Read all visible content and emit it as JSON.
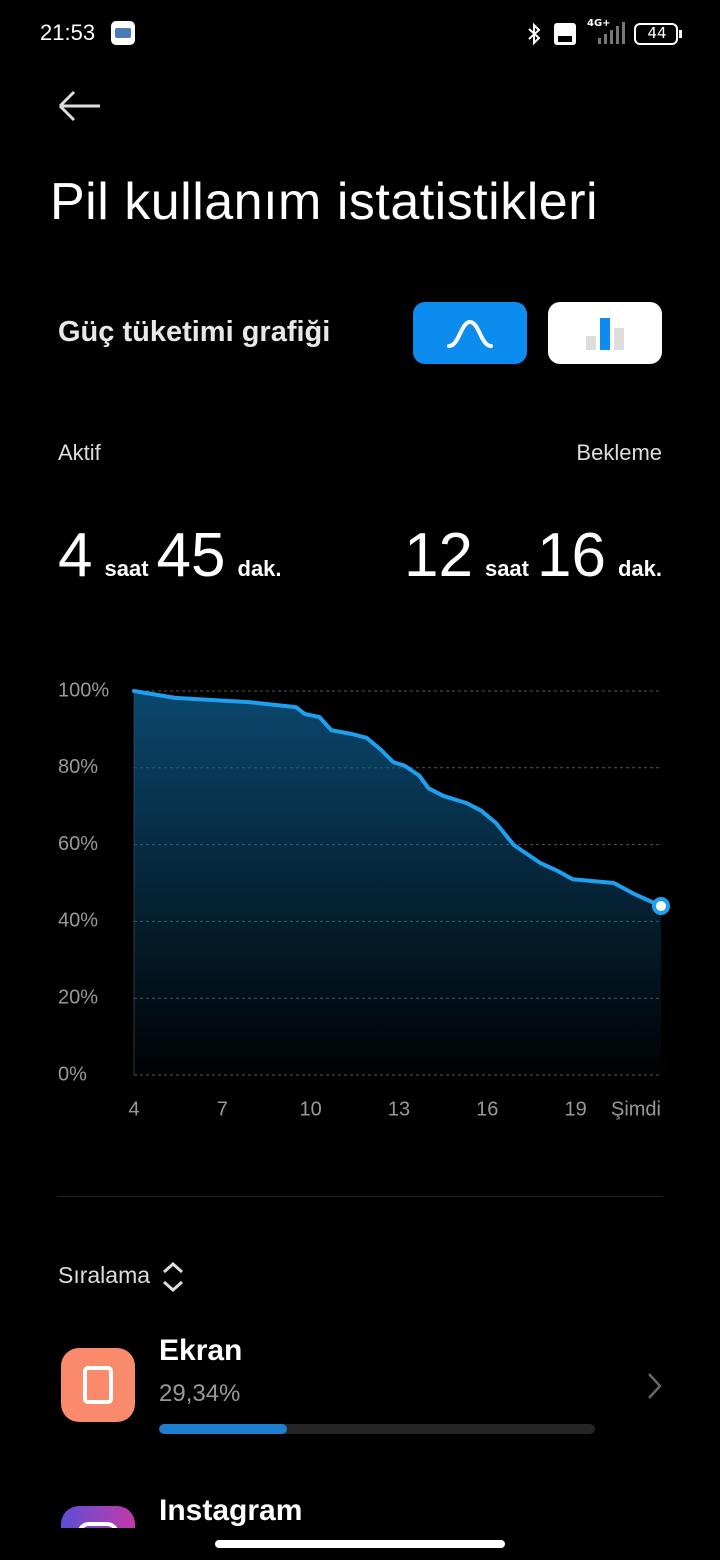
{
  "status_bar": {
    "time": "21:53",
    "network": "4G+",
    "battery": "44"
  },
  "header": {
    "title": "Pil kullanım istatistikleri"
  },
  "graph_section": {
    "label": "Güç tüketimi grafiği"
  },
  "summary": {
    "active": {
      "label": "Aktif",
      "hours": 4,
      "hours_unit": "saat",
      "minutes": 45,
      "minutes_unit": "dak."
    },
    "standby": {
      "label": "Bekleme",
      "hours": 12,
      "hours_unit": "saat",
      "minutes": 16,
      "minutes_unit": "dak."
    }
  },
  "chart_data": {
    "type": "line",
    "color": "#1ea0f0",
    "grid": true,
    "x": [
      4.0,
      5.4,
      7.9,
      9.5,
      9.8,
      10.3,
      10.7,
      11.4,
      11.9,
      12.4,
      12.8,
      13.2,
      13.7,
      14.0,
      14.5,
      15.3,
      15.8,
      16.3,
      16.9,
      17.8,
      18.4,
      18.9,
      20.3,
      21.0,
      21.9
    ],
    "values": [
      100,
      98.2,
      97.1,
      95.8,
      94,
      93.2,
      89.8,
      88.8,
      87.8,
      84.6,
      81.5,
      80.5,
      77.9,
      74.7,
      72.7,
      70.8,
      68.8,
      65.6,
      59.9,
      55.2,
      53.1,
      51,
      50,
      47.1,
      44
    ],
    "xlim": [
      4,
      21.9
    ],
    "xticks": [
      4,
      7,
      10,
      13,
      16,
      19,
      {
        "value": 21.9,
        "label": "Şimdi"
      }
    ],
    "ylim": [
      0,
      100
    ],
    "yticks": [
      {
        "value": 0,
        "label": "0%"
      },
      {
        "value": 20,
        "label": "20%"
      },
      {
        "value": 40,
        "label": "40%"
      },
      {
        "value": 60,
        "label": "60%"
      },
      {
        "value": 80,
        "label": "80%"
      },
      {
        "value": 100,
        "label": "100%"
      }
    ]
  },
  "sort": {
    "label": "Sıralama"
  },
  "apps": [
    {
      "name": "Ekran",
      "percent_label": "29,34%",
      "percent": 29.34
    },
    {
      "name": "Instagram"
    }
  ]
}
